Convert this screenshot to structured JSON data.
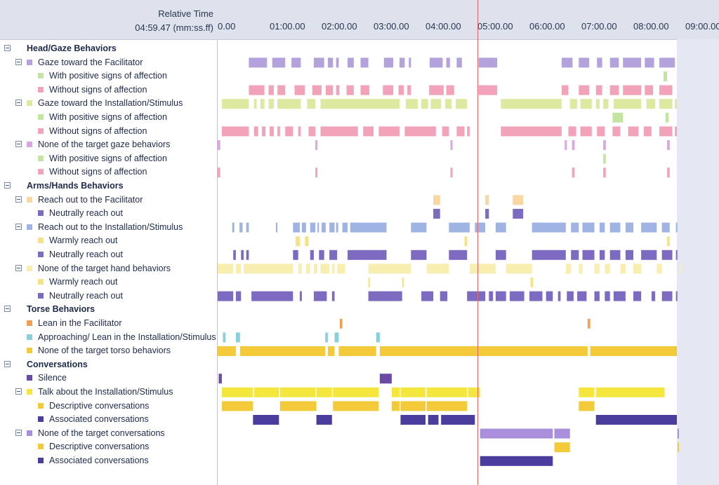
{
  "header": {
    "relative_time_label": "Relative Time",
    "current_time": "04:59.47 (mm:ss.ff)",
    "ticks": [
      "0.00",
      "01:00.00",
      "02:00.00",
      "03:00.00",
      "04:00.00",
      "05:00.00",
      "06:00.00",
      "07:00.00",
      "08:00.00",
      "09:00.00"
    ]
  },
  "colors": {
    "purple_light": "#b4a2dc",
    "green": "#c4e5a2",
    "pink": "#f3a3b9",
    "lime": "#dde9a0",
    "peach": "#f7d7a2",
    "violet": "#7d6bc2",
    "blue": "#9fb4e3",
    "yellow": "#f4e287",
    "gold": "#f2ca3a",
    "orange": "#f0a054",
    "cyan": "#88d1dc",
    "indigo": "#4b3d9e",
    "yellow_bright": "#f5e63e",
    "cursor": "#e06868"
  },
  "rows": [
    {
      "label": "Head/Gaze Behaviors",
      "level": 0,
      "group": true,
      "swatch": null
    },
    {
      "label": "Gaze toward the Facilitator",
      "level": 1,
      "swatch": "#b4a2dc"
    },
    {
      "label": "With positive signs of affection",
      "level": 2,
      "swatch": "#c4e5a2"
    },
    {
      "label": "Without signs of affection",
      "level": 2,
      "swatch": "#f3a3b9"
    },
    {
      "label": "Gaze toward the Installation/Stimulus",
      "level": 1,
      "swatch": "#dde9a0"
    },
    {
      "label": "With positive signs of affection",
      "level": 2,
      "swatch": "#c4e5a2"
    },
    {
      "label": "Without signs of affection",
      "level": 2,
      "swatch": "#f3a3b9"
    },
    {
      "label": "None of the target gaze behaviors",
      "level": 1,
      "swatch": "#d8a7e3"
    },
    {
      "label": "With positive signs of affection",
      "level": 2,
      "swatch": "#c4e5a2"
    },
    {
      "label": "Without signs of affection",
      "level": 2,
      "swatch": "#f3a3b9"
    },
    {
      "label": "Arms/Hands Behaviors",
      "level": 0,
      "group": true,
      "swatch": null
    },
    {
      "label": "Reach out to the Facilitator",
      "level": 1,
      "swatch": "#f7d7a2"
    },
    {
      "label": "Neutrally reach out",
      "level": 2,
      "swatch": "#7d6bc2"
    },
    {
      "label": "Reach out to the Installation/Stimulus",
      "level": 1,
      "swatch": "#9fb4e3"
    },
    {
      "label": "Warmly reach out",
      "level": 2,
      "swatch": "#f4e287"
    },
    {
      "label": "Neutrally reach out",
      "level": 2,
      "swatch": "#7d6bc2"
    },
    {
      "label": "None of the target hand behaviors",
      "level": 1,
      "swatch": "#f7eeb0"
    },
    {
      "label": "Warmly reach out",
      "level": 2,
      "swatch": "#f4e287"
    },
    {
      "label": "Neutrally reach out",
      "level": 2,
      "swatch": "#7d6bc2"
    },
    {
      "label": "Torse Behaviors",
      "level": 0,
      "group": true,
      "swatch": null
    },
    {
      "label": "Lean in the Facilitator",
      "level": 1,
      "swatch": "#f0a054",
      "toggle": false
    },
    {
      "label": "Approaching/ Lean in the Installation/Stimulus",
      "level": 1,
      "swatch": "#88d1dc",
      "toggle": false
    },
    {
      "label": "None of the target torso behaviors",
      "level": 1,
      "swatch": "#f2ca3a",
      "toggle": false
    },
    {
      "label": "Conversations",
      "level": 0,
      "group": true,
      "swatch": null
    },
    {
      "label": "Silence",
      "level": 1,
      "swatch": "#6b4aa8",
      "toggle": false
    },
    {
      "label": "Talk about the Installation/Stimulus",
      "level": 1,
      "swatch": "#f5e63e"
    },
    {
      "label": "Descriptive conversations",
      "level": 2,
      "swatch": "#f2ca3a"
    },
    {
      "label": "Associated conversations",
      "level": 2,
      "swatch": "#4b3d9e"
    },
    {
      "label": "None of the target conversations",
      "level": 1,
      "swatch": "#a98fdb"
    },
    {
      "label": "Descriptive conversations",
      "level": 2,
      "swatch": "#f2ca3a"
    },
    {
      "label": "Associated conversations",
      "level": 2,
      "swatch": "#4b3d9e"
    }
  ],
  "tracks": [
    {
      "row": 1,
      "color": "#b4a2dc",
      "segments": [
        [
          0.6,
          0.95
        ],
        [
          1.05,
          1.3
        ],
        [
          1.42,
          1.6
        ],
        [
          1.85,
          2.05
        ],
        [
          2.12,
          2.22
        ],
        [
          2.28,
          2.33
        ],
        [
          2.5,
          2.62
        ],
        [
          2.75,
          2.9
        ],
        [
          3.2,
          3.38
        ],
        [
          3.5,
          3.6
        ],
        [
          3.68,
          3.72
        ],
        [
          4.08,
          4.33
        ],
        [
          4.4,
          4.47
        ],
        [
          4.6,
          4.7
        ],
        [
          5.02,
          5.38
        ],
        [
          6.62,
          6.83
        ],
        [
          6.95,
          7.15
        ],
        [
          7.3,
          7.4
        ],
        [
          7.55,
          7.72
        ],
        [
          7.8,
          8.15
        ],
        [
          8.22,
          8.4
        ],
        [
          8.5,
          8.8
        ]
      ]
    },
    {
      "row": 2,
      "color": "#c4e5a2",
      "segments": [
        [
          8.58,
          8.65
        ]
      ]
    },
    {
      "row": 3,
      "color": "#f3a3b9",
      "segments": [
        [
          0.6,
          0.9
        ],
        [
          0.98,
          1.08
        ],
        [
          1.15,
          1.3
        ],
        [
          1.48,
          1.68
        ],
        [
          1.82,
          2.0
        ],
        [
          2.08,
          2.22
        ],
        [
          2.28,
          2.34
        ],
        [
          2.48,
          2.62
        ],
        [
          2.75,
          2.92
        ],
        [
          3.18,
          3.38
        ],
        [
          3.48,
          3.58
        ],
        [
          3.65,
          3.72
        ],
        [
          4.07,
          4.35
        ],
        [
          4.4,
          4.55
        ],
        [
          5.02,
          5.38
        ],
        [
          6.62,
          6.75
        ],
        [
          6.95,
          7.15
        ],
        [
          7.28,
          7.4
        ],
        [
          7.55,
          7.72
        ],
        [
          7.8,
          8.15
        ],
        [
          8.22,
          8.38
        ],
        [
          8.5,
          8.75
        ]
      ]
    },
    {
      "row": 4,
      "color": "#dde9a0",
      "segments": [
        [
          0.08,
          0.6
        ],
        [
          0.7,
          0.75
        ],
        [
          0.82,
          0.9
        ],
        [
          0.98,
          1.08
        ],
        [
          1.15,
          1.6
        ],
        [
          1.72,
          1.88
        ],
        [
          1.98,
          3.5
        ],
        [
          3.62,
          3.85
        ],
        [
          3.92,
          4.05
        ],
        [
          4.1,
          4.3
        ],
        [
          4.38,
          4.5
        ],
        [
          4.58,
          4.8
        ],
        [
          5.45,
          6.62
        ],
        [
          6.78,
          6.92
        ],
        [
          6.98,
          7.2
        ],
        [
          7.28,
          7.35
        ],
        [
          7.42,
          7.52
        ],
        [
          7.62,
          8.15
        ],
        [
          8.25,
          8.42
        ],
        [
          8.5,
          8.75
        ],
        [
          8.8,
          8.9
        ]
      ]
    },
    {
      "row": 5,
      "color": "#c4e5a2",
      "segments": [
        [
          7.6,
          7.8
        ],
        [
          8.62,
          8.68
        ]
      ]
    },
    {
      "row": 6,
      "color": "#f3a3b9",
      "segments": [
        [
          0.08,
          0.6
        ],
        [
          0.7,
          0.78
        ],
        [
          0.85,
          0.92
        ],
        [
          1.0,
          1.08
        ],
        [
          1.15,
          1.2
        ],
        [
          1.3,
          1.45
        ],
        [
          1.55,
          1.6
        ],
        [
          1.75,
          1.88
        ],
        [
          1.98,
          2.7
        ],
        [
          2.8,
          3.0
        ],
        [
          3.1,
          3.5
        ],
        [
          3.6,
          4.2
        ],
        [
          4.32,
          4.45
        ],
        [
          4.6,
          4.75
        ],
        [
          4.8,
          4.85
        ],
        [
          5.45,
          6.62
        ],
        [
          6.75,
          6.9
        ],
        [
          6.98,
          7.2
        ],
        [
          7.3,
          7.45
        ],
        [
          7.6,
          7.75
        ],
        [
          7.9,
          8.1
        ],
        [
          8.2,
          8.35
        ],
        [
          8.5,
          8.75
        ],
        [
          8.8,
          8.95
        ]
      ]
    },
    {
      "row": 7,
      "color": "#d8a7e3",
      "segments": [
        [
          0.0,
          0.05
        ],
        [
          1.88,
          1.92
        ],
        [
          4.48,
          4.52
        ],
        [
          6.68,
          6.72
        ],
        [
          6.82,
          6.87
        ],
        [
          7.42,
          7.47
        ],
        [
          8.65,
          8.7
        ]
      ]
    },
    {
      "row": 8,
      "color": "#c4e5a2",
      "segments": [
        [
          7.42,
          7.47
        ]
      ]
    },
    {
      "row": 9,
      "color": "#f3a3b9",
      "segments": [
        [
          0.0,
          0.05
        ],
        [
          1.88,
          1.92
        ],
        [
          4.48,
          4.52
        ],
        [
          6.82,
          6.87
        ],
        [
          7.42,
          7.47
        ],
        [
          8.65,
          8.7
        ]
      ]
    },
    {
      "row": 11,
      "color": "#f7d7a2",
      "segments": [
        [
          4.15,
          4.28
        ],
        [
          5.15,
          5.22
        ],
        [
          5.68,
          5.88
        ]
      ]
    },
    {
      "row": 12,
      "color": "#7d6bc2",
      "segments": [
        [
          4.15,
          4.28
        ],
        [
          5.15,
          5.22
        ],
        [
          5.68,
          5.88
        ]
      ]
    },
    {
      "row": 13,
      "color": "#9fb4e3",
      "segments": [
        [
          0.28,
          0.32
        ],
        [
          0.42,
          0.48
        ],
        [
          0.55,
          0.6
        ],
        [
          1.12,
          1.15
        ],
        [
          1.45,
          1.58
        ],
        [
          1.62,
          1.7
        ],
        [
          1.78,
          1.88
        ],
        [
          1.92,
          1.95
        ],
        [
          2.0,
          2.08
        ],
        [
          2.15,
          2.25
        ],
        [
          2.28,
          2.32
        ],
        [
          2.4,
          2.5
        ],
        [
          2.55,
          3.25
        ],
        [
          3.72,
          4.02
        ],
        [
          4.45,
          4.85
        ],
        [
          4.95,
          5.15
        ],
        [
          5.35,
          5.55
        ],
        [
          6.05,
          6.7
        ],
        [
          6.8,
          6.95
        ],
        [
          7.02,
          7.25
        ],
        [
          7.35,
          7.45
        ],
        [
          7.55,
          7.75
        ],
        [
          7.85,
          8.0
        ],
        [
          8.15,
          8.45
        ],
        [
          8.55,
          8.7
        ],
        [
          8.82,
          8.9
        ]
      ]
    },
    {
      "row": 14,
      "color": "#f4e287",
      "segments": [
        [
          1.5,
          1.58
        ],
        [
          1.68,
          1.75
        ],
        [
          4.75,
          4.8
        ],
        [
          8.65,
          8.7
        ]
      ]
    },
    {
      "row": 15,
      "color": "#7d6bc2",
      "segments": [
        [
          0.3,
          0.35
        ],
        [
          0.45,
          0.5
        ],
        [
          0.55,
          0.6
        ],
        [
          1.45,
          1.55
        ],
        [
          1.78,
          1.85
        ],
        [
          1.95,
          2.05
        ],
        [
          2.15,
          2.3
        ],
        [
          2.5,
          3.25
        ],
        [
          3.72,
          4.02
        ],
        [
          4.45,
          4.8
        ],
        [
          5.35,
          5.55
        ],
        [
          6.05,
          6.7
        ],
        [
          6.8,
          6.95
        ],
        [
          7.02,
          7.25
        ],
        [
          7.35,
          7.45
        ],
        [
          7.55,
          7.75
        ],
        [
          7.85,
          8.0
        ],
        [
          8.15,
          8.45
        ],
        [
          8.55,
          8.75
        ],
        [
          8.82,
          8.9
        ]
      ]
    },
    {
      "row": 16,
      "color": "#f7eeb0",
      "segments": [
        [
          0.0,
          0.3
        ],
        [
          0.35,
          0.45
        ],
        [
          0.5,
          1.45
        ],
        [
          1.55,
          1.62
        ],
        [
          1.7,
          1.78
        ],
        [
          1.85,
          1.92
        ],
        [
          1.98,
          2.15
        ],
        [
          2.2,
          2.25
        ],
        [
          2.3,
          2.45
        ],
        [
          2.9,
          3.72
        ],
        [
          4.02,
          4.45
        ],
        [
          4.85,
          5.35
        ],
        [
          5.55,
          6.05
        ],
        [
          6.7,
          6.8
        ],
        [
          6.95,
          7.02
        ],
        [
          7.25,
          7.35
        ],
        [
          7.45,
          7.55
        ],
        [
          7.75,
          7.85
        ],
        [
          8.0,
          8.15
        ],
        [
          8.45,
          8.55
        ],
        [
          8.9,
          8.95
        ]
      ]
    },
    {
      "row": 17,
      "color": "#f4e287",
      "segments": [
        [
          2.9,
          2.93
        ],
        [
          3.55,
          3.58
        ],
        [
          6.02,
          6.07
        ]
      ]
    },
    {
      "row": 18,
      "color": "#7d6bc2",
      "segments": [
        [
          0.0,
          0.3
        ],
        [
          0.35,
          0.45
        ],
        [
          0.65,
          1.45
        ],
        [
          1.58,
          1.62
        ],
        [
          1.85,
          2.1
        ],
        [
          2.2,
          2.25
        ],
        [
          2.9,
          3.55
        ],
        [
          3.92,
          4.15
        ],
        [
          4.28,
          4.42
        ],
        [
          4.8,
          5.15
        ],
        [
          5.22,
          5.3
        ],
        [
          5.35,
          5.55
        ],
        [
          5.62,
          5.9
        ],
        [
          6.0,
          6.25
        ],
        [
          6.32,
          6.45
        ],
        [
          6.55,
          6.6
        ],
        [
          6.72,
          6.85
        ],
        [
          6.92,
          7.1
        ],
        [
          7.25,
          7.35
        ],
        [
          7.45,
          7.55
        ],
        [
          7.62,
          7.85
        ],
        [
          8.0,
          8.15
        ],
        [
          8.35,
          8.42
        ],
        [
          8.55,
          8.75
        ],
        [
          8.82,
          8.9
        ]
      ]
    },
    {
      "row": 20,
      "color": "#f0a054",
      "segments": [
        [
          2.35,
          2.4
        ],
        [
          7.12,
          7.17
        ]
      ]
    },
    {
      "row": 21,
      "color": "#88d1dc",
      "segments": [
        [
          0.1,
          0.15
        ],
        [
          0.35,
          0.43
        ],
        [
          2.07,
          2.12
        ],
        [
          2.25,
          2.33
        ],
        [
          3.05,
          3.12
        ]
      ]
    },
    {
      "row": 22,
      "color": "#f2ca3a",
      "segments": [
        [
          0.0,
          0.35
        ],
        [
          0.43,
          2.07
        ],
        [
          2.12,
          2.25
        ],
        [
          2.33,
          3.05
        ],
        [
          3.12,
          7.12
        ],
        [
          7.17,
          8.85
        ]
      ]
    },
    {
      "row": 24,
      "color": "#6b4aa8",
      "segments": [
        [
          0.02,
          0.08
        ],
        [
          3.12,
          3.35
        ]
      ]
    },
    {
      "row": 25,
      "color": "#f5e63e",
      "segments": [
        [
          0.08,
          0.68
        ],
        [
          0.7,
          1.18
        ],
        [
          1.2,
          1.88
        ],
        [
          1.9,
          2.2
        ],
        [
          2.22,
          3.1
        ],
        [
          3.35,
          3.5
        ],
        [
          3.52,
          4.0
        ],
        [
          4.02,
          4.8
        ],
        [
          4.82,
          5.05
        ],
        [
          6.95,
          7.25
        ],
        [
          7.28,
          8.6
        ]
      ]
    },
    {
      "row": 26,
      "color": "#f2ca3a",
      "segments": [
        [
          0.08,
          0.68
        ],
        [
          1.2,
          1.9
        ],
        [
          2.22,
          3.1
        ],
        [
          3.35,
          3.5
        ],
        [
          3.52,
          4.0
        ],
        [
          4.02,
          4.8
        ],
        [
          6.95,
          7.25
        ]
      ]
    },
    {
      "row": 27,
      "color": "#4b3d9e",
      "segments": [
        [
          0.68,
          1.18
        ],
        [
          1.9,
          2.2
        ],
        [
          3.52,
          4.0
        ],
        [
          4.05,
          4.25
        ],
        [
          4.3,
          4.95
        ],
        [
          7.28,
          8.85
        ]
      ]
    },
    {
      "row": 28,
      "color": "#a98fdb",
      "segments": [
        [
          5.05,
          6.45
        ],
        [
          6.48,
          6.78
        ],
        [
          8.85,
          8.9
        ]
      ]
    },
    {
      "row": 29,
      "color": "#f2ca3a",
      "segments": [
        [
          6.48,
          6.78
        ],
        [
          8.85,
          8.9
        ]
      ]
    },
    {
      "row": 30,
      "color": "#4b3d9e",
      "segments": [
        [
          5.05,
          6.45
        ]
      ]
    }
  ]
}
